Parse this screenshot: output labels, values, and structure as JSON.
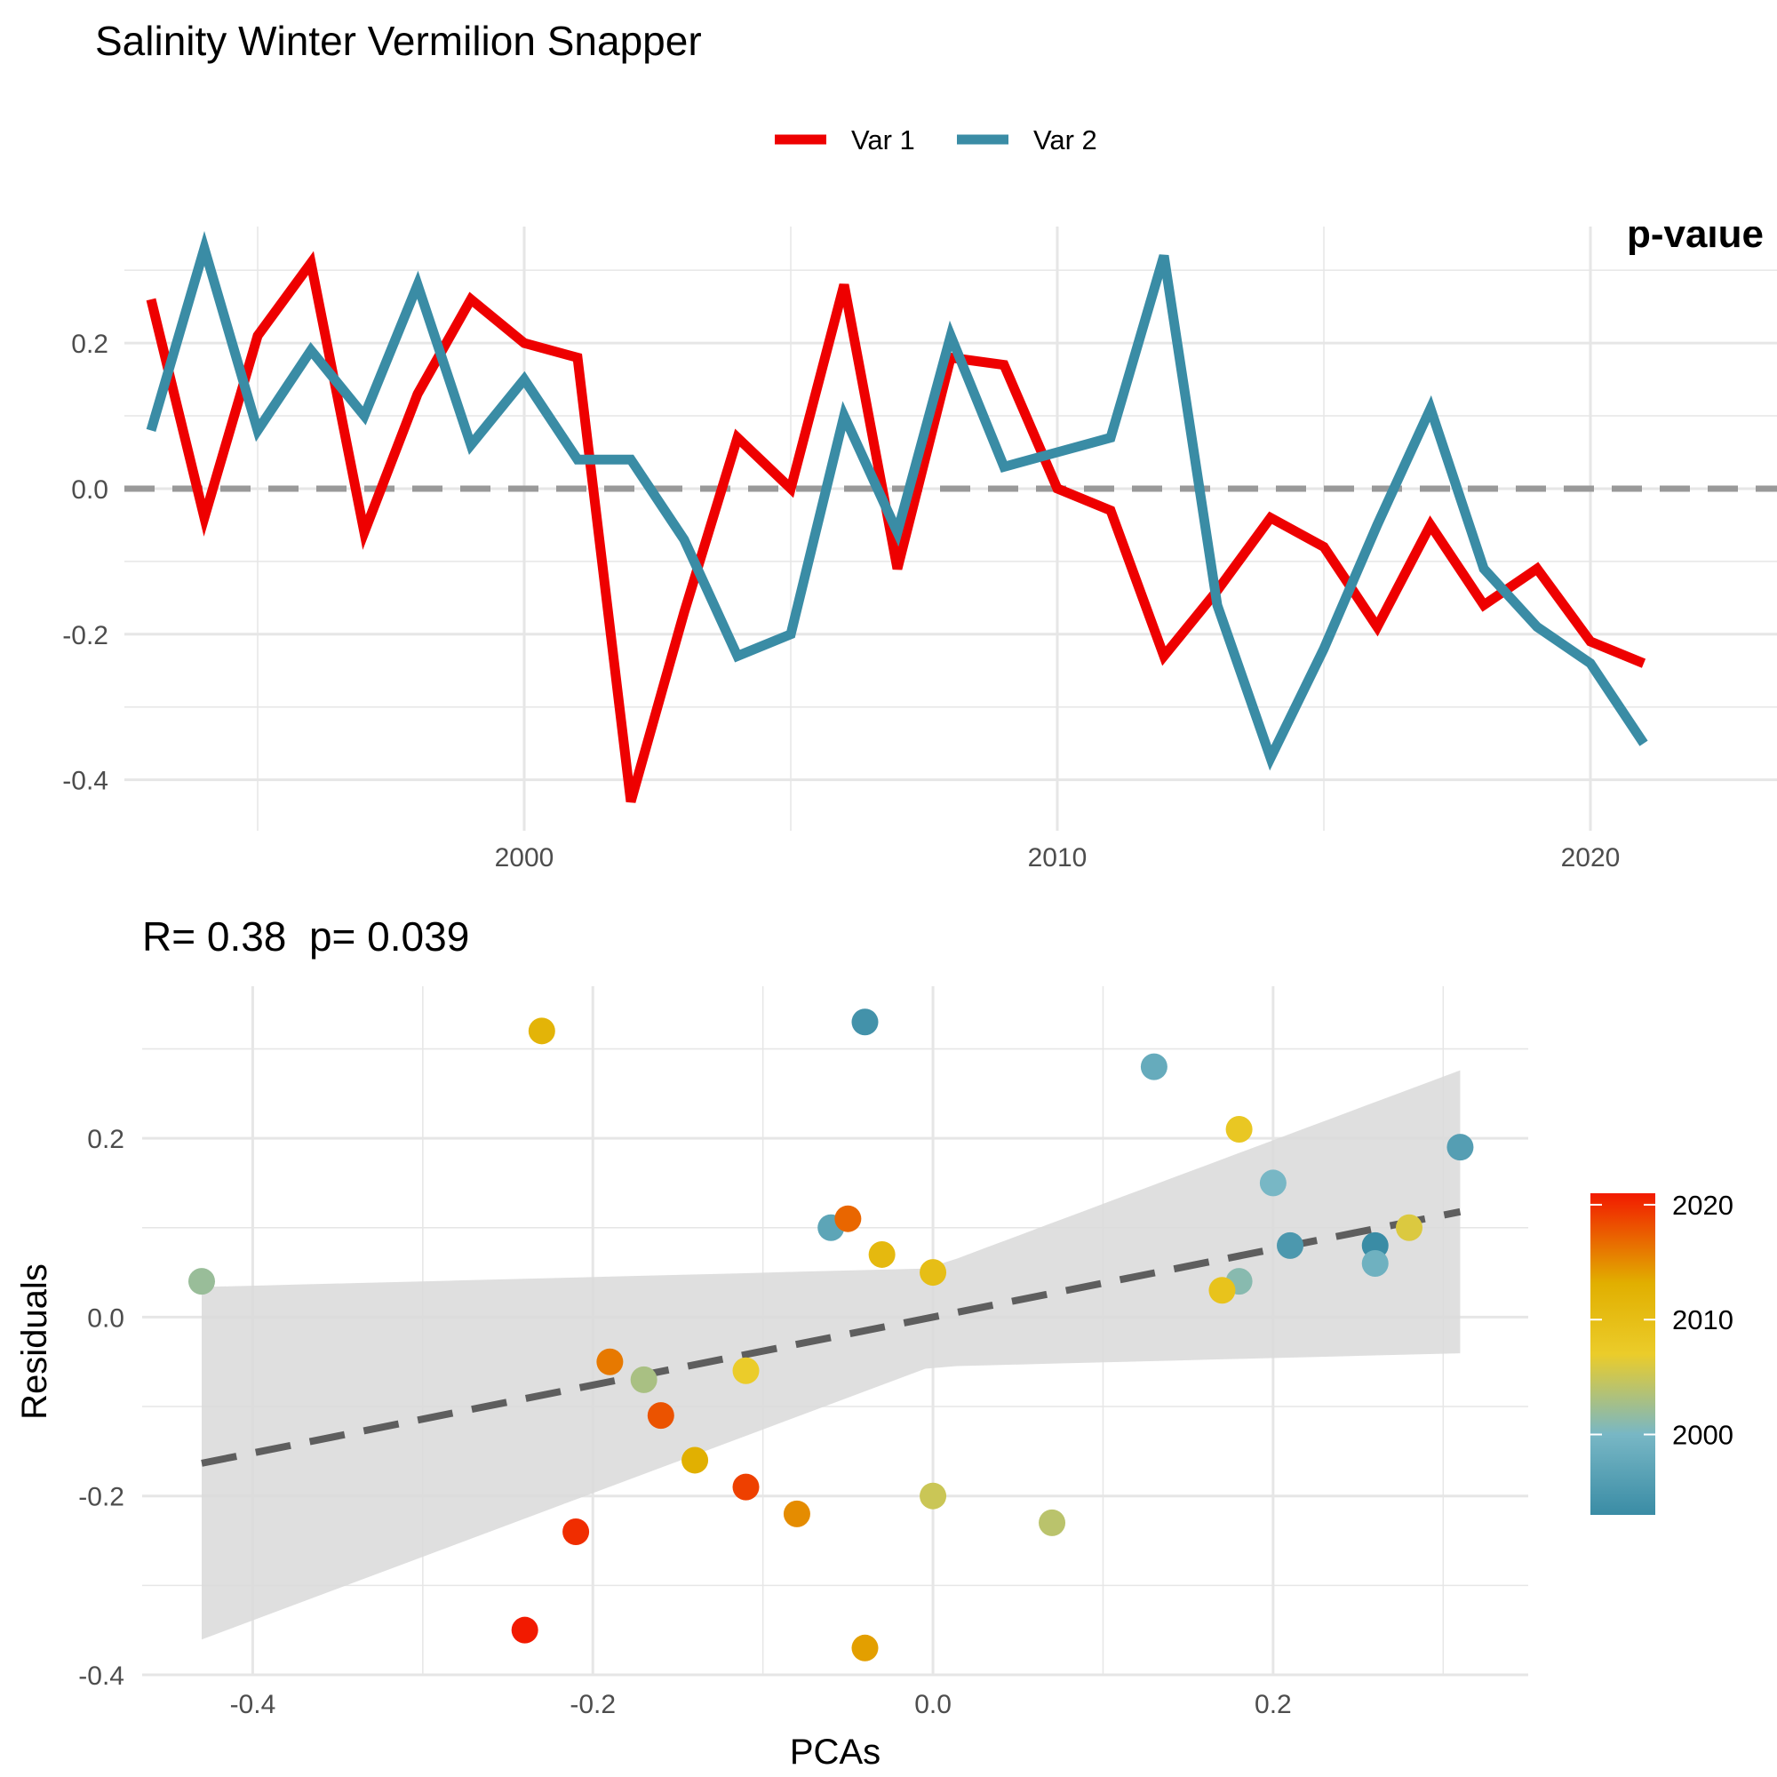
{
  "title": "Salinity Winter Vermilion Snapper",
  "colors": {
    "var1": "#EE0000",
    "var2": "#3A8CA5",
    "zero_line": "#999999",
    "fit_line": "#5E5E5E",
    "band": "#D9D9D9",
    "grid": "#E6E6E6"
  },
  "chart_data": [
    {
      "type": "line",
      "title": "",
      "xlabel": "",
      "ylabel": "",
      "xlim": [
        1992.5,
        2023.5
      ],
      "ylim": [
        -0.47,
        0.36
      ],
      "x_ticks": [
        2000,
        2010,
        2020
      ],
      "y_ticks": [
        -0.4,
        -0.2,
        0.0,
        0.2
      ],
      "x_tick_labels": [
        "2000",
        "2010",
        "2020"
      ],
      "y_tick_labels": [
        "-0.4",
        "-0.2",
        "0.0",
        "0.2"
      ],
      "reference_line": {
        "y": 0,
        "style": "dashed"
      },
      "legend": {
        "position": "top",
        "entries": [
          "Var 1",
          "Var 2"
        ]
      },
      "grid": true,
      "clipped_annotation": "p-value",
      "x": [
        1993,
        1994,
        1995,
        1996,
        1997,
        1998,
        1999,
        2000,
        2001,
        2002,
        2003,
        2004,
        2005,
        2006,
        2007,
        2008,
        2009,
        2010,
        2011,
        2012,
        2013,
        2014,
        2015,
        2016,
        2017,
        2018,
        2019,
        2020,
        2021
      ],
      "series": [
        {
          "name": "Var 1",
          "color": "#EE0000",
          "values": [
            0.26,
            -0.04,
            0.21,
            0.31,
            -0.06,
            0.13,
            0.26,
            0.2,
            0.18,
            -0.43,
            -0.17,
            0.07,
            0.0,
            0.28,
            -0.11,
            0.18,
            0.17,
            0.0,
            -0.03,
            -0.23,
            -0.14,
            -0.04,
            -0.08,
            -0.19,
            -0.05,
            -0.16,
            -0.11,
            -0.21,
            -0.24
          ]
        },
        {
          "name": "Var 2",
          "color": "#3A8CA5",
          "values": [
            0.08,
            0.33,
            0.08,
            0.19,
            0.1,
            0.28,
            0.06,
            0.15,
            0.04,
            0.04,
            -0.07,
            -0.23,
            -0.2,
            0.1,
            -0.06,
            0.21,
            0.03,
            0.05,
            0.07,
            0.32,
            -0.16,
            -0.37,
            -0.22,
            -0.05,
            0.11,
            -0.11,
            -0.19,
            -0.24,
            -0.35
          ]
        }
      ]
    },
    {
      "type": "scatter",
      "title": "R= 0.38  p= 0.039",
      "xlabel": "PCAs",
      "ylabel": "Residuals",
      "xlim": [
        -0.465,
        0.35
      ],
      "ylim": [
        -0.4,
        0.37
      ],
      "x_ticks": [
        -0.4,
        -0.2,
        0.0,
        0.2
      ],
      "y_ticks": [
        -0.4,
        -0.2,
        0.0,
        0.2
      ],
      "x_tick_labels": [
        "-0.4",
        "-0.2",
        "0.0",
        "0.2"
      ],
      "y_tick_labels": [
        "-0.4",
        "-0.2",
        "0.0",
        "0.2"
      ],
      "grid": true,
      "colorbar": {
        "position": "right",
        "range": [
          1993,
          2021
        ],
        "ticks": [
          2000,
          2010,
          2020
        ],
        "tick_labels": [
          "2000",
          "2010",
          "2020"
        ],
        "stops": [
          "#3A8CA5",
          "#78B7C5",
          "#EBCC2A",
          "#E1AF00",
          "#F21A00"
        ]
      },
      "fit": {
        "style": "dashed",
        "intercept": 0.0,
        "slope": 0.38,
        "x_range": [
          -0.43,
          0.31
        ]
      },
      "points": [
        {
          "x": 0.26,
          "y": 0.08,
          "year": 1993
        },
        {
          "x": -0.04,
          "y": 0.33,
          "year": 1994
        },
        {
          "x": 0.21,
          "y": 0.08,
          "year": 1995
        },
        {
          "x": 0.31,
          "y": 0.19,
          "year": 1996
        },
        {
          "x": -0.06,
          "y": 0.1,
          "year": 1997
        },
        {
          "x": 0.13,
          "y": 0.28,
          "year": 1998
        },
        {
          "x": 0.26,
          "y": 0.06,
          "year": 1999
        },
        {
          "x": 0.2,
          "y": 0.15,
          "year": 2000
        },
        {
          "x": 0.18,
          "y": 0.04,
          "year": 2001
        },
        {
          "x": -0.43,
          "y": 0.04,
          "year": 2002
        },
        {
          "x": -0.17,
          "y": -0.07,
          "year": 2003
        },
        {
          "x": 0.07,
          "y": -0.23,
          "year": 2004
        },
        {
          "x": 0.0,
          "y": -0.2,
          "year": 2005
        },
        {
          "x": 0.28,
          "y": 0.1,
          "year": 2006
        },
        {
          "x": -0.11,
          "y": -0.06,
          "year": 2007
        },
        {
          "x": 0.18,
          "y": 0.21,
          "year": 2008
        },
        {
          "x": 0.17,
          "y": 0.03,
          "year": 2009
        },
        {
          "x": 0.0,
          "y": 0.05,
          "year": 2010
        },
        {
          "x": -0.03,
          "y": 0.07,
          "year": 2011
        },
        {
          "x": -0.23,
          "y": 0.32,
          "year": 2012
        },
        {
          "x": -0.14,
          "y": -0.16,
          "year": 2013
        },
        {
          "x": -0.04,
          "y": -0.37,
          "year": 2014
        },
        {
          "x": -0.08,
          "y": -0.22,
          "year": 2015
        },
        {
          "x": -0.19,
          "y": -0.05,
          "year": 2016
        },
        {
          "x": -0.05,
          "y": 0.11,
          "year": 2017
        },
        {
          "x": -0.16,
          "y": -0.11,
          "year": 2018
        },
        {
          "x": -0.11,
          "y": -0.19,
          "year": 2019
        },
        {
          "x": -0.21,
          "y": -0.24,
          "year": 2020
        },
        {
          "x": -0.24,
          "y": -0.35,
          "year": 2021
        }
      ]
    }
  ]
}
